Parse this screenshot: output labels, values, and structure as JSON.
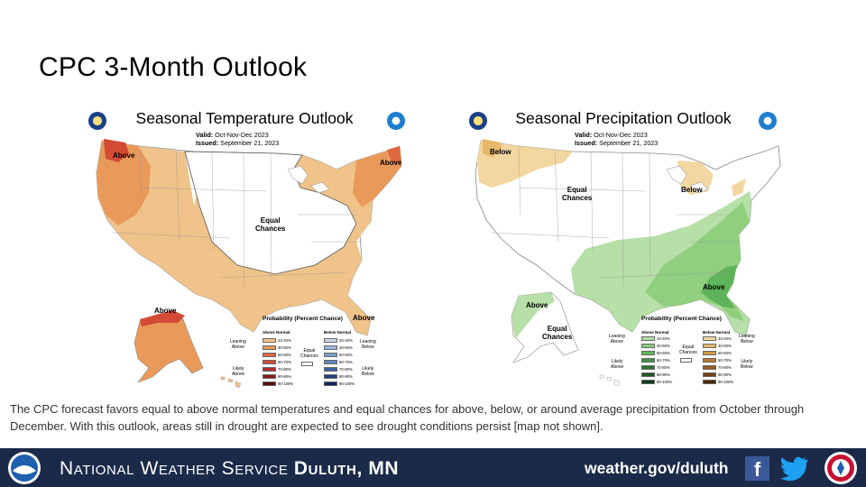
{
  "slide": {
    "title": "CPC 3-Month Outlook",
    "caption": "The CPC forecast favors equal to above normal temperatures and equal chances for above, below, or around average precipitation from October through December. With this outlook, areas still in drought are expected to see drought conditions persist [map not shown]."
  },
  "temperature_map": {
    "title": "Seasonal Temperature Outlook",
    "valid_label": "Valid:",
    "valid_value": "Oct-Nov-Dec 2023",
    "issued_label": "Issued:",
    "issued_value": "September 21, 2023",
    "labels": {
      "above_nw": "Above",
      "above_ne": "Above",
      "above_fl": "Above",
      "above_ak": "Above",
      "equal_chances": "Equal\nChances"
    },
    "legend": {
      "title": "Probability (Percent Chance)",
      "above_head": "Above Normal",
      "below_head": "Below Normal",
      "leaning_above": "Leaning\nAbove",
      "likely_above": "Likely\nAbove",
      "leaning_below": "Leaning\nBelow",
      "likely_below": "Likely\nBelow",
      "equal_chances": "Equal\nChances",
      "ranges": [
        "33-40%",
        "40-50%",
        "50-60%",
        "60-70%",
        "70-80%",
        "80-90%",
        "90-100%"
      ],
      "above_colors": [
        "#f0c38a",
        "#e9995a",
        "#e06a3f",
        "#d34a35",
        "#b52b2b",
        "#8c1b1b",
        "#5a0f0f"
      ],
      "below_colors": [
        "#c6d7ec",
        "#9db9df",
        "#7b9fd2",
        "#5d83c0",
        "#3b5ea7",
        "#243f86",
        "#14225a"
      ]
    }
  },
  "precipitation_map": {
    "title": "Seasonal Precipitation Outlook",
    "valid_label": "Valid:",
    "valid_value": "Oct-Nov-Dec 2023",
    "issued_label": "Issued:",
    "issued_value": "September 21, 2023",
    "labels": {
      "below_nw": "Below",
      "below_mi": "Below",
      "above_se": "Above",
      "above_ak": "Above",
      "equal_chances_conus": "Equal\nChances",
      "equal_chances_ak": "Equal\nChances"
    },
    "legend": {
      "title": "Probability (Percent Chance)",
      "above_head": "Above Normal",
      "below_head": "Below Normal",
      "leaning_above": "Leaning\nAbove",
      "likely_above": "Likely\nAbove",
      "leaning_below": "Leaning\nBelow",
      "likely_below": "Likely\nBelow",
      "equal_chances": "Equal\nChances",
      "ranges": [
        "33-40%",
        "40-50%",
        "50-60%",
        "60-70%",
        "70-80%",
        "80-90%",
        "90-100%"
      ],
      "above_colors": [
        "#b7dfa8",
        "#8fcf7e",
        "#5fb35a",
        "#3f9244",
        "#2b7434",
        "#1d5726",
        "#103b18"
      ],
      "below_colors": [
        "#f2d7a0",
        "#e6b86a",
        "#d19b45",
        "#b67a33",
        "#955b24",
        "#6f3f17",
        "#4a270d"
      ]
    }
  },
  "colors": {
    "temp_leaning_above": "#f0c38a",
    "temp_above_40_50": "#e9995a",
    "temp_above_50_60": "#e06a3f",
    "temp_above_60_70": "#d34a35",
    "precip_leaning_below": "#f2d7a0",
    "precip_below_40_50": "#e6b86a",
    "precip_leaning_above": "#b7dfa8",
    "precip_above_40_50": "#8fcf7e",
    "precip_above_50_60": "#5fb35a",
    "footer_bg": "#1b2a49"
  },
  "footer": {
    "office_prefix": "National Weather Service",
    "office_name": "Duluth, MN",
    "url": "weather.gov/duluth",
    "facebook_icon": "facebook-icon",
    "twitter_icon": "twitter-icon"
  }
}
